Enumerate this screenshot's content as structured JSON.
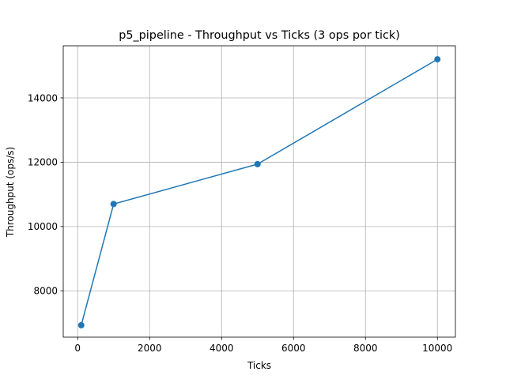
{
  "chart_data": {
    "type": "line",
    "title": "p5_pipeline - Throughput vs Ticks (3 ops por tick)",
    "xlabel": "Ticks",
    "ylabel": "Throughput (ops/s)",
    "xlim": [
      -400,
      10500
    ],
    "ylim": [
      6560,
      15620
    ],
    "xticks": [
      0,
      2000,
      4000,
      6000,
      8000,
      10000
    ],
    "yticks": [
      8000,
      10000,
      12000,
      14000
    ],
    "grid": true,
    "series": [
      {
        "color": "#1f77b4",
        "marker": "circle",
        "x": [
          100,
          1000,
          5000,
          10000
        ],
        "y": [
          6930,
          10700,
          11940,
          15200
        ]
      }
    ]
  }
}
